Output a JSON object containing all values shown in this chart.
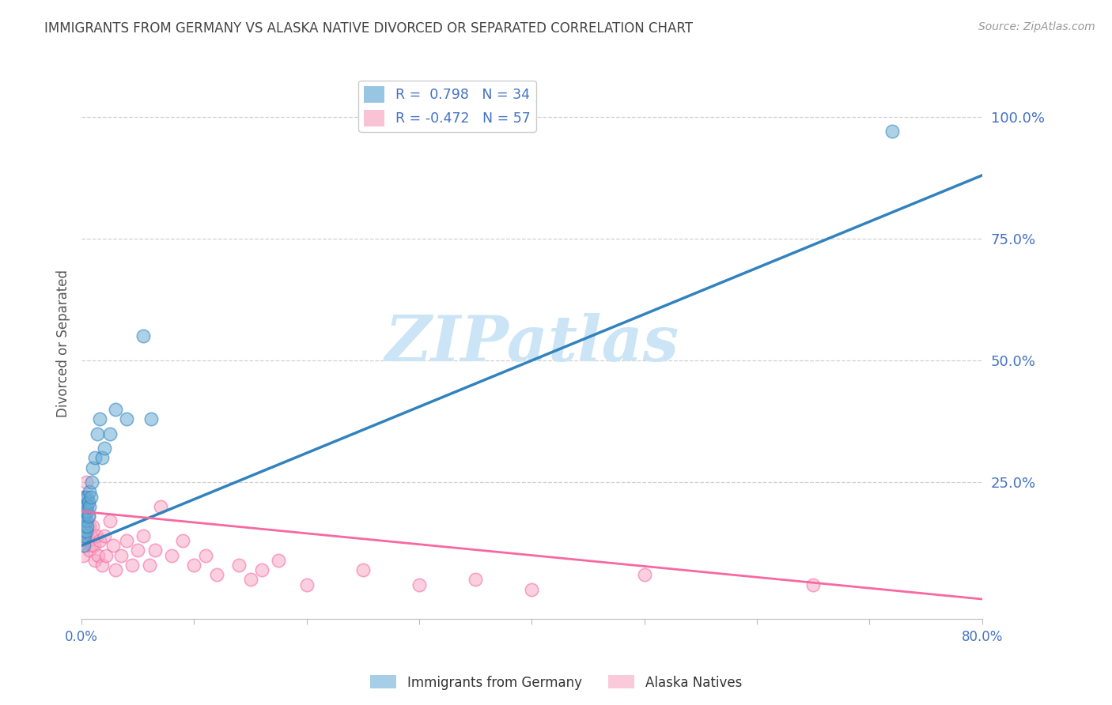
{
  "title": "IMMIGRANTS FROM GERMANY VS ALASKA NATIVE DIVORCED OR SEPARATED CORRELATION CHART",
  "source": "Source: ZipAtlas.com",
  "ylabel": "Divorced or Separated",
  "ytick_labels": [
    "100.0%",
    "75.0%",
    "50.0%",
    "25.0%"
  ],
  "ytick_values": [
    1.0,
    0.75,
    0.5,
    0.25
  ],
  "xlim": [
    0.0,
    0.8
  ],
  "ylim": [
    -0.03,
    1.1
  ],
  "watermark": "ZIPatlas",
  "legend_stats": [
    {
      "label": "R =  0.798   N = 34",
      "color": "#6baed6"
    },
    {
      "label": "R = -0.472   N = 57",
      "color": "#f7a8c4"
    }
  ],
  "legend_labels": [
    "Immigrants from Germany",
    "Alaska Natives"
  ],
  "blue_color": "#6baed6",
  "pink_color": "#f7a8c4",
  "blue_line_color": "#3182bd",
  "pink_line_color": "#f768a1",
  "blue_scatter": {
    "x": [
      0.001,
      0.001,
      0.001,
      0.002,
      0.002,
      0.002,
      0.003,
      0.003,
      0.003,
      0.003,
      0.004,
      0.004,
      0.004,
      0.005,
      0.005,
      0.005,
      0.006,
      0.006,
      0.007,
      0.007,
      0.008,
      0.009,
      0.01,
      0.012,
      0.014,
      0.016,
      0.018,
      0.02,
      0.025,
      0.03,
      0.04,
      0.055,
      0.062,
      0.72
    ],
    "y": [
      0.14,
      0.17,
      0.2,
      0.15,
      0.18,
      0.12,
      0.14,
      0.16,
      0.19,
      0.22,
      0.15,
      0.17,
      0.2,
      0.16,
      0.19,
      0.22,
      0.18,
      0.21,
      0.2,
      0.23,
      0.22,
      0.25,
      0.28,
      0.3,
      0.35,
      0.38,
      0.3,
      0.32,
      0.35,
      0.4,
      0.38,
      0.55,
      0.38,
      0.97
    ]
  },
  "pink_scatter": {
    "x": [
      0.001,
      0.001,
      0.001,
      0.002,
      0.002,
      0.002,
      0.003,
      0.003,
      0.003,
      0.004,
      0.004,
      0.004,
      0.005,
      0.005,
      0.005,
      0.006,
      0.006,
      0.007,
      0.007,
      0.008,
      0.009,
      0.01,
      0.011,
      0.012,
      0.013,
      0.015,
      0.016,
      0.018,
      0.02,
      0.022,
      0.025,
      0.028,
      0.03,
      0.035,
      0.04,
      0.045,
      0.05,
      0.055,
      0.06,
      0.065,
      0.07,
      0.08,
      0.09,
      0.1,
      0.11,
      0.12,
      0.14,
      0.15,
      0.16,
      0.175,
      0.2,
      0.25,
      0.3,
      0.35,
      0.4,
      0.5,
      0.65
    ],
    "y": [
      0.1,
      0.15,
      0.2,
      0.12,
      0.17,
      0.22,
      0.14,
      0.18,
      0.22,
      0.15,
      0.19,
      0.25,
      0.16,
      0.2,
      0.14,
      0.18,
      0.13,
      0.16,
      0.11,
      0.14,
      0.12,
      0.16,
      0.12,
      0.09,
      0.14,
      0.1,
      0.13,
      0.08,
      0.14,
      0.1,
      0.17,
      0.12,
      0.07,
      0.1,
      0.13,
      0.08,
      0.11,
      0.14,
      0.08,
      0.11,
      0.2,
      0.1,
      0.13,
      0.08,
      0.1,
      0.06,
      0.08,
      0.05,
      0.07,
      0.09,
      0.04,
      0.07,
      0.04,
      0.05,
      0.03,
      0.06,
      0.04
    ]
  },
  "blue_line": {
    "x0": 0.0,
    "y0": 0.12,
    "x1": 0.8,
    "y1": 0.88
  },
  "pink_line": {
    "x0": 0.0,
    "y0": 0.19,
    "x1": 0.8,
    "y1": 0.01
  },
  "background_color": "#ffffff",
  "grid_color": "#d0d0d0",
  "title_color": "#444444",
  "axis_label_color": "#555555",
  "right_axis_color": "#4472c4",
  "watermark_color": "#cce5f6"
}
